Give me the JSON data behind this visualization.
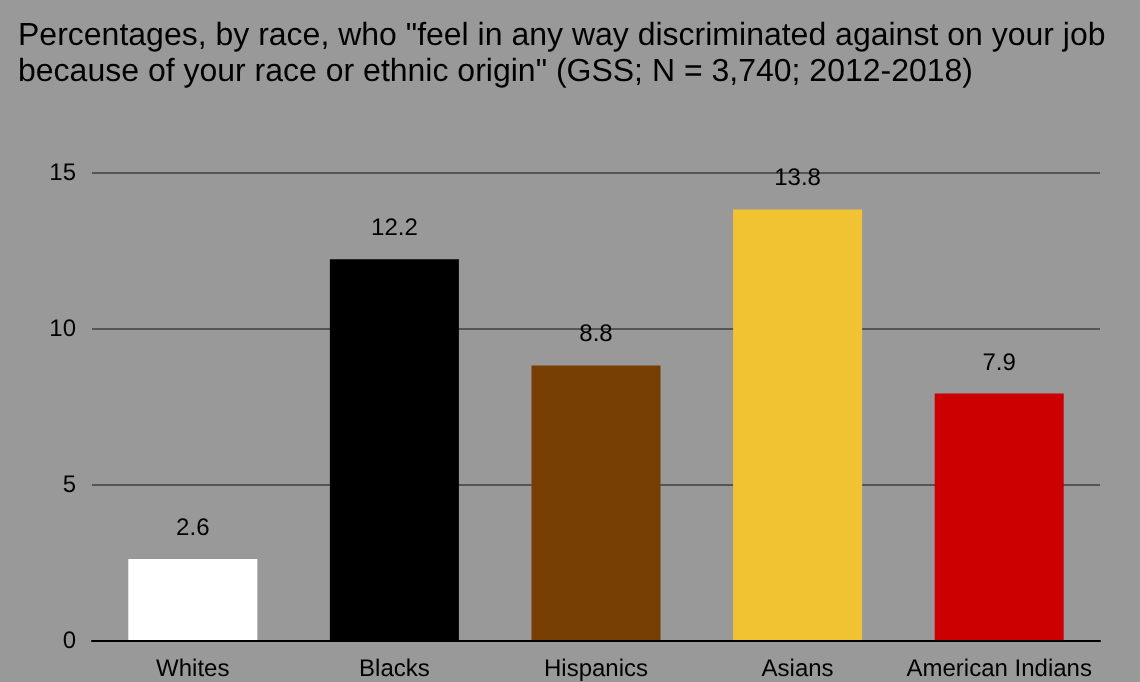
{
  "chart_data": {
    "type": "bar",
    "title": "Percentages, by race, who \"feel in any way discriminated against on your job because of your race or ethnic origin\" (GSS; N = 3,740; 2012-2018)",
    "categories": [
      "Whites",
      "Blacks",
      "Hispanics",
      "Asians",
      "American Indians"
    ],
    "values": [
      2.6,
      12.2,
      8.8,
      13.8,
      7.9
    ],
    "colors": [
      "#ffffff",
      "#000000",
      "#783f04",
      "#f1c232",
      "#cc0000"
    ],
    "ylim": [
      0,
      15
    ],
    "yticks": [
      0,
      5,
      10,
      15
    ],
    "grid": "y",
    "data_labels": true
  }
}
